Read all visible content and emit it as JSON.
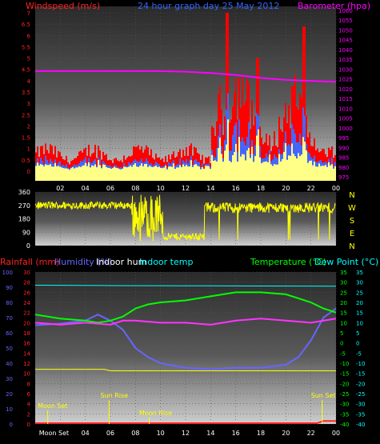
{
  "colors": {
    "background": "#000000",
    "windspeed": "#ff0000",
    "gust_max": "#ff1a1a",
    "wind_avg": "#4466ff",
    "wind_low": "#ffff88",
    "barometer": "#ff00ff",
    "direction": "#ffff00",
    "rainfall": "#ff2222",
    "humidity": "#6666ff",
    "indoor_hum": "#ffffff",
    "indoor_temp": "#00ffff",
    "temperature": "#00ff00",
    "dew_point": "#00ffff",
    "label_sun": "#ffff00",
    "label_moon": "#ffff00"
  },
  "chart_data": [
    {
      "type": "bar",
      "panel": "wind-speed-barometer",
      "title": "24 hour graph day  25 May 2012",
      "ylabel_left": "Windspeed (m/s)",
      "ylabel_right": "Barometer (hpa)",
      "x_ticks": [
        "02",
        "04",
        "06",
        "08",
        "10",
        "12",
        "14",
        "16",
        "18",
        "20",
        "22",
        "00"
      ],
      "y_left_ticks": [
        "0",
        "0.5",
        "1",
        "1.5",
        "2",
        "2.5",
        "3",
        "3.5",
        "4",
        "4.5",
        "5",
        "5.5",
        "6",
        "6.5",
        "7"
      ],
      "y_left_range": [
        0,
        7
      ],
      "y_right_ticks": [
        "975",
        "980",
        "985",
        "990",
        "995",
        "1000",
        "1005",
        "1010",
        "1015",
        "1020",
        "1025",
        "1030",
        "1035",
        "1040",
        "1045",
        "1050",
        "1055",
        "1060"
      ],
      "y_right_range": [
        973,
        1062
      ],
      "barometer_x": [
        0,
        2,
        4,
        6,
        8,
        10,
        12,
        14,
        16,
        18,
        20,
        22,
        24
      ],
      "barometer_y": [
        1029,
        1029,
        1029,
        1029,
        1029,
        1029,
        1028.7,
        1028,
        1027,
        1025.5,
        1024.5,
        1024,
        1023.5
      ],
      "gust_peaks": [
        {
          "x": 15.3,
          "y": 7.0
        },
        {
          "x": 21.5,
          "y": 6.4
        },
        {
          "x": 17.8,
          "y": 5.0
        }
      ],
      "grid": true
    },
    {
      "type": "scatter",
      "panel": "wind-direction",
      "y_ticks": [
        "0",
        "90",
        "180",
        "270",
        "360"
      ],
      "y_range": [
        0,
        360
      ],
      "compass_labels": [
        "N",
        "W",
        "S",
        "E",
        "N"
      ],
      "segments": [
        {
          "from": 0,
          "to": 7.7,
          "base": 270,
          "spread": 25
        },
        {
          "from": 7.7,
          "to": 10.2,
          "base": 200,
          "spread": 150
        },
        {
          "from": 10.2,
          "to": 13.5,
          "base": 60,
          "spread": 25
        },
        {
          "from": 13.5,
          "to": 24,
          "base": 255,
          "spread": 35
        }
      ],
      "grid": true
    },
    {
      "type": "line",
      "panel": "temperature-humidity",
      "legend": [
        "Rainfall (mm)",
        "Humidity (%)",
        "Indoor hum",
        "Indoor temp",
        "Temperature (°C)",
        "Dew Point (°C)"
      ],
      "y_far_left_ticks": [
        "0",
        "10",
        "20",
        "30",
        "40",
        "50",
        "60",
        "70",
        "80",
        "90",
        "100"
      ],
      "y_left_ticks": [
        "0",
        "2",
        "4",
        "6",
        "8",
        "10",
        "12",
        "14",
        "16",
        "18",
        "20",
        "22",
        "24",
        "26",
        "28",
        "30"
      ],
      "y_right_ticks": [
        "-40",
        "-35",
        "-30",
        "-25",
        "-20",
        "-15",
        "-10",
        "-5",
        "0",
        "5",
        "10",
        "15",
        "20",
        "25",
        "30",
        "35"
      ],
      "y_temp_range": [
        -40,
        35
      ],
      "y_pct_range": [
        0,
        100
      ],
      "series": [
        {
          "name": "Humidity (%)",
          "unit": "pct",
          "x": [
            0,
            2,
            4,
            5,
            6,
            7,
            8,
            9,
            10,
            12,
            14,
            16,
            18,
            20,
            21,
            22,
            23,
            24
          ],
          "y": [
            65,
            66,
            68,
            72,
            68,
            62,
            50,
            44,
            40,
            37,
            36,
            37,
            37,
            39,
            44,
            55,
            70,
            76
          ]
        },
        {
          "name": "Indoor temp",
          "unit": "temp",
          "x": [
            0,
            6,
            12,
            18,
            24
          ],
          "y": [
            28.5,
            28.3,
            28.2,
            28.1,
            28
          ]
        },
        {
          "name": "Temperature (°C)",
          "unit": "temp",
          "x": [
            0,
            2,
            4,
            5,
            6,
            7,
            8,
            9,
            10,
            12,
            14,
            16,
            18,
            20,
            22,
            23,
            24
          ],
          "y": [
            14,
            12,
            11,
            10,
            11,
            13,
            17,
            19,
            20,
            21,
            23,
            25,
            25,
            24,
            20,
            17,
            15
          ]
        },
        {
          "name": "Dew Point (°C)",
          "unit": "temp",
          "x": [
            0,
            2,
            4,
            6,
            7,
            8,
            10,
            12,
            14,
            16,
            18,
            20,
            22,
            24
          ],
          "y": [
            10,
            9,
            10,
            9,
            11,
            11,
            10,
            10,
            9,
            11,
            12,
            11,
            10,
            12
          ]
        },
        {
          "name": "Indoor hum",
          "unit": "pct",
          "x": [
            0,
            5.5,
            6,
            24
          ],
          "y": [
            36,
            36,
            35,
            35
          ]
        },
        {
          "name": "Rainfall (mm)",
          "unit": "pct",
          "x": [
            0,
            22.5,
            23,
            24
          ],
          "y": [
            0.5,
            0.5,
            2,
            2
          ]
        }
      ],
      "annotations": [
        "Moon Set",
        "Sun Rise",
        "Moon Rise",
        "Sun Set"
      ],
      "x_ticks": [
        "Moon Set",
        "04",
        "06",
        "08",
        "10",
        "12",
        "14",
        "16",
        "18",
        "20",
        "22",
        "00"
      ],
      "grid": true
    }
  ]
}
